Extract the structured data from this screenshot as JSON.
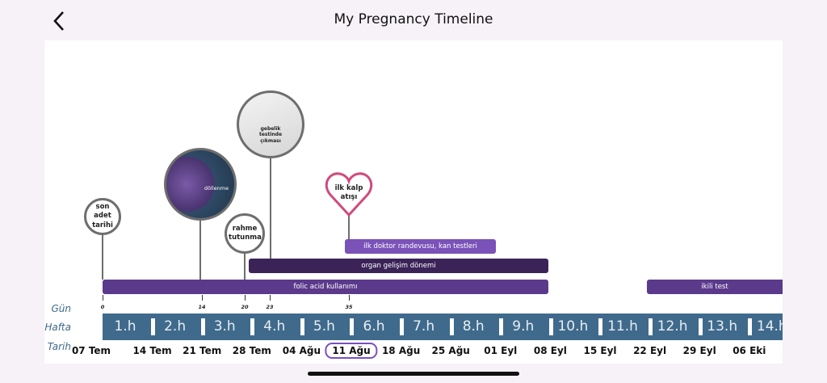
{
  "header": {
    "title": "My Pregnancy Timeline",
    "back_icon": "chevron-left-icon"
  },
  "rows": {
    "day": "Gün",
    "week": "Hafta",
    "date": "Tarih"
  },
  "milestones": [
    {
      "label": "son adet tarihi",
      "day": 0
    },
    {
      "label": "döllenme",
      "day": 14
    },
    {
      "label": "rahme tutunma",
      "day": 20
    },
    {
      "label": "gebelik testinde çıkması",
      "day": 23
    },
    {
      "label": "ilk kalp atışı",
      "day": 35
    }
  ],
  "periods": [
    {
      "label": "ilk doktor randevusu, kan testleri"
    },
    {
      "label": "organ gelişim dönemi"
    },
    {
      "label": "folic acid kullanımı"
    },
    {
      "label": "ikili test"
    }
  ],
  "days": [
    "0",
    "14",
    "20",
    "23",
    "35"
  ],
  "weeks": [
    "1.h",
    "2.h",
    "3.h",
    "4.h",
    "5.h",
    "6.h",
    "7.h",
    "8.h",
    "9.h",
    "10.h",
    "11.h",
    "12.h",
    "13.h",
    "14.h"
  ],
  "dates": [
    "07 Tem",
    "14 Tem",
    "21 Tem",
    "28 Tem",
    "04 Ağu",
    "11 Ağu",
    "18 Ağu",
    "25 Ağu",
    "01 Eyl",
    "08 Eyl",
    "15 Eyl",
    "22 Eyl",
    "29 Eyl",
    "06 Eki"
  ],
  "selected_date": "11 Ağu",
  "colors": {
    "week_bar": "#3f6a8c",
    "period": "#5b3a8c",
    "organ": "#3b2358",
    "doctor": "#7a52b8",
    "heart": "#d14a7c",
    "selected": "#7a4fc2"
  }
}
